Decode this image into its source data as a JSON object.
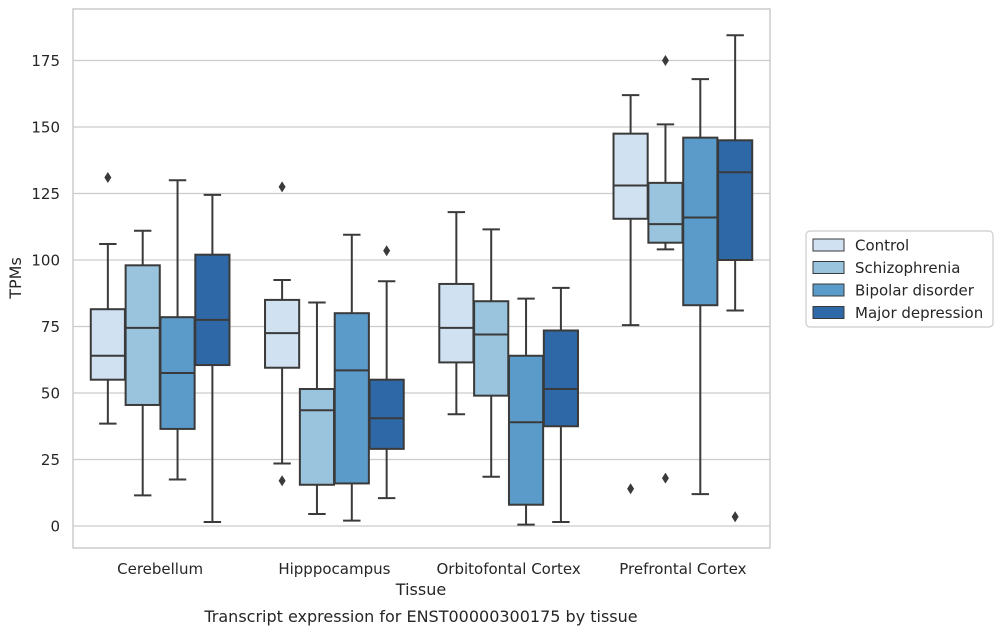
{
  "chart_data": {
    "type": "boxplot",
    "caption": "Transcript expression for ENST00000300175 by tissue",
    "xlabel": "Tissue",
    "ylabel": "TPMs",
    "ylim": [
      -8,
      194
    ],
    "yticks": [
      0,
      25,
      50,
      75,
      100,
      125,
      150,
      175
    ],
    "grid": true,
    "legend_position": "right",
    "categories": [
      "Cerebellum",
      "Hipppocampus",
      "Orbitofontal Cortex",
      "Prefrontal Cortex"
    ],
    "series": [
      {
        "name": "Control",
        "color": "#d0e1f2",
        "boxes": [
          {
            "whislo": 38.5,
            "q1": 55,
            "med": 64,
            "q3": 81.5,
            "whishi": 106,
            "fliers": [
              131
            ]
          },
          {
            "whislo": 23.5,
            "q1": 59.5,
            "med": 72.5,
            "q3": 85,
            "whishi": 92.5,
            "fliers": [
              127.5,
              17
            ]
          },
          {
            "whislo": 42,
            "q1": 61.5,
            "med": 74.5,
            "q3": 91,
            "whishi": 118,
            "fliers": []
          },
          {
            "whislo": 75.5,
            "q1": 115.5,
            "med": 128,
            "q3": 147.5,
            "whishi": 162,
            "fliers": [
              14
            ]
          }
        ]
      },
      {
        "name": "Schizophrenia",
        "color": "#9ac3dd",
        "boxes": [
          {
            "whislo": 11.5,
            "q1": 45.5,
            "med": 74.5,
            "q3": 98,
            "whishi": 111,
            "fliers": []
          },
          {
            "whislo": 4.5,
            "q1": 15.5,
            "med": 43.5,
            "q3": 51.5,
            "whishi": 84,
            "fliers": []
          },
          {
            "whislo": 18.5,
            "q1": 49,
            "med": 72,
            "q3": 84.5,
            "whishi": 111.5,
            "fliers": []
          },
          {
            "whislo": 104,
            "q1": 106.5,
            "med": 113.5,
            "q3": 129,
            "whishi": 151,
            "fliers": [
              175,
              18
            ]
          }
        ]
      },
      {
        "name": "Bipolar disorder",
        "color": "#5a9bc9",
        "boxes": [
          {
            "whislo": 17.5,
            "q1": 36.5,
            "med": 57.5,
            "q3": 78.5,
            "whishi": 130,
            "fliers": []
          },
          {
            "whislo": 2,
            "q1": 16,
            "med": 58.5,
            "q3": 80,
            "whishi": 109.5,
            "fliers": []
          },
          {
            "whislo": 0.5,
            "q1": 8,
            "med": 39,
            "q3": 64,
            "whishi": 85.5,
            "fliers": []
          },
          {
            "whislo": 12,
            "q1": 83,
            "med": 116,
            "q3": 146,
            "whishi": 168,
            "fliers": []
          }
        ]
      },
      {
        "name": "Major depression",
        "color": "#2e68a6",
        "boxes": [
          {
            "whislo": 1.5,
            "q1": 60.5,
            "med": 77.5,
            "q3": 102,
            "whishi": 124.5,
            "fliers": []
          },
          {
            "whislo": 10.5,
            "q1": 29,
            "med": 40.5,
            "q3": 55,
            "whishi": 92,
            "fliers": [
              103.5
            ]
          },
          {
            "whislo": 1.5,
            "q1": 37.5,
            "med": 51.5,
            "q3": 73.5,
            "whishi": 89.5,
            "fliers": []
          },
          {
            "whislo": 81,
            "q1": 100,
            "med": 133,
            "q3": 145,
            "whishi": 184.5,
            "fliers": [
              3.5
            ]
          }
        ]
      }
    ]
  }
}
